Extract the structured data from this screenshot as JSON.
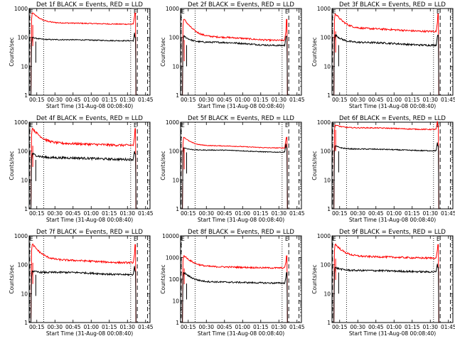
{
  "charts": [
    {
      "title": "Det 1f BLACK = Events, RED = LLD",
      "red_level": 300,
      "black_level": 80,
      "red_start": 700,
      "black_start": 100,
      "bump": 0.04,
      "noise": 0.04,
      "spike_red_x": 3.0,
      "spike_black_x": 5.5
    },
    {
      "title": "Det 2f BLACK = Events, RED = LLD",
      "red_level": 90,
      "black_level": 60,
      "red_start": 420,
      "black_start": 110,
      "bump": 0.12,
      "noise": 0.06,
      "spike_red_x": 3.0,
      "spike_black_x": 5.0
    },
    {
      "title": "Det 3f BLACK = Events, RED = LLD",
      "red_level": 180,
      "black_level": 60,
      "red_start": 650,
      "black_start": 120,
      "bump": 0.1,
      "noise": 0.07,
      "spike_red_x": 3.0,
      "spike_black_x": 5.5
    },
    {
      "title": "Det 4f BLACK = Events, RED = LLD",
      "red_level": 170,
      "black_level": 55,
      "red_start": 600,
      "black_start": 80,
      "bump": 0.06,
      "noise": 0.09,
      "spike_red_x": 3.0,
      "spike_black_x": 5.5
    },
    {
      "title": "Det 5f BLACK = Events, RED = LLD",
      "red_level": 140,
      "black_level": 100,
      "red_start": 300,
      "black_start": 130,
      "bump": 0.08,
      "noise": 0.03,
      "spike_red_x": 3.0,
      "spike_black_x": 5.0
    },
    {
      "title": "Det 6f BLACK = Events, RED = LLD",
      "red_level": 600,
      "black_level": 110,
      "red_start": 800,
      "black_start": 150,
      "bump": 0.06,
      "noise": 0.04,
      "spike_red_x": 3.0,
      "spike_black_x": 5.5
    },
    {
      "title": "Det 7f BLACK = Events, RED = LLD",
      "red_level": 130,
      "black_level": 50,
      "red_start": 500,
      "black_start": 60,
      "bump": 0.09,
      "noise": 0.07,
      "spike_red_x": 3.0,
      "spike_black_x": 5.5
    },
    {
      "title": "Det 8f BLACK = Events, RED = LLD",
      "red_level": 350,
      "black_level": 70,
      "red_start": 1200,
      "black_start": 200,
      "bump": 0.05,
      "noise": 0.08,
      "spike_red_x": 3.0,
      "spike_black_x": 5.0
    },
    {
      "title": "Det 9f BLACK = Events, RED = LLD",
      "red_level": 180,
      "black_level": 60,
      "red_start": 500,
      "black_start": 80,
      "bump": 0.05,
      "noise": 0.07,
      "spike_red_x": 3.0,
      "spike_black_x": 5.5
    }
  ],
  "axes": {
    "ylabel": "Counts/sec",
    "xlabel": "Start Time (31-Aug-08 00:08:40)",
    "xticks": [
      "00:15",
      "00:30",
      "00:45",
      "01:00",
      "01:15",
      "01:30",
      "01:45"
    ],
    "yticks_default": [
      "1",
      "10",
      "100",
      "1000"
    ],
    "yticks_10000": [
      "1",
      "10",
      "100",
      "1000",
      "10000"
    ],
    "corner_left": "E",
    "corner_right": "E",
    "ymin": 1,
    "yscale": "log"
  },
  "colors": {
    "red_series": "#ff0000",
    "black_series": "#000000",
    "background": "#ffffff"
  }
}
